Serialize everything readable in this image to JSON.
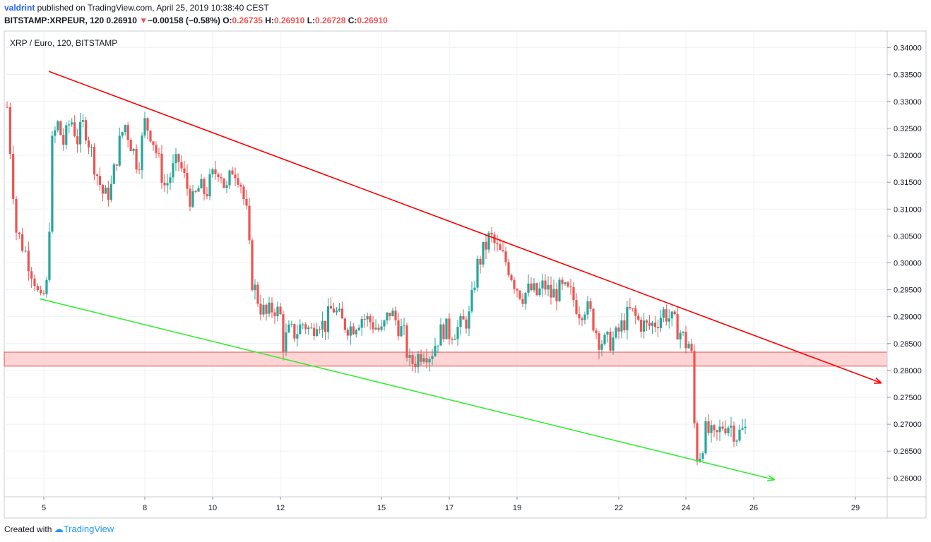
{
  "header": {
    "user": "valdrint",
    "published": " published on TradingView.com, April 25, 2019 10:38:40 CEST",
    "symbol": "BITSTAMP:XRPEUR, 120",
    "last": "0.26910",
    "arrow": "▼",
    "change": "−0.00158 (−0.58%)",
    "o_label": "O:",
    "o_value": "0.26735",
    "h_label": "H:",
    "h_value": "0.26910",
    "l_label": "L:",
    "l_value": "0.26728",
    "c_label": "C:",
    "c_value": "0.26910"
  },
  "footer": {
    "created": "Created with",
    "brand": "TradingView"
  },
  "colors": {
    "up": "#26a69a",
    "down": "#ef5350",
    "resistance": "#ff0000",
    "support": "#33ee33",
    "zone_fill": "#ffcccc",
    "zone_edge": "#e05050",
    "grid": "#eef1f5"
  },
  "chart_data": {
    "type": "candlestick",
    "title": "XRP / Euro, 120, BITSTAMP",
    "xlabel": "",
    "ylabel": "",
    "x_ticks": [
      "5",
      "8",
      "10",
      "12",
      "15",
      "17",
      "19",
      "22",
      "24",
      "26",
      "29"
    ],
    "y_ticks": [
      "0.34000",
      "0.33500",
      "0.33000",
      "0.32500",
      "0.32000",
      "0.31500",
      "0.31000",
      "0.30500",
      "0.30000",
      "0.29500",
      "0.29000",
      "0.28500",
      "0.28000",
      "0.27500",
      "0.27000",
      "0.26500",
      "0.26000"
    ],
    "ylim": [
      0.2565,
      0.3431
    ],
    "grid": true,
    "zone": {
      "low": 0.2808,
      "high": 0.2834
    },
    "resistance_line": {
      "from": {
        "day": 5.15,
        "price": 0.3356
      },
      "to": {
        "day": 29.75,
        "price": 0.2777
      }
    },
    "support_line": {
      "from": {
        "day": 4.9,
        "price": 0.2933
      },
      "to": {
        "day": 26.6,
        "price": 0.2597
      }
    },
    "closes": [
      [
        4.0,
        0.329
      ],
      [
        4.25,
        0.306
      ],
      [
        4.5,
        0.302
      ],
      [
        4.75,
        0.297
      ],
      [
        4.9,
        0.292
      ],
      [
        5.1,
        0.296
      ],
      [
        5.25,
        0.322
      ],
      [
        5.4,
        0.326
      ],
      [
        5.6,
        0.322
      ],
      [
        5.8,
        0.327
      ],
      [
        6.0,
        0.323
      ],
      [
        6.2,
        0.326
      ],
      [
        6.4,
        0.321
      ],
      [
        6.6,
        0.316
      ],
      [
        6.8,
        0.312
      ],
      [
        7.0,
        0.314
      ],
      [
        7.2,
        0.321
      ],
      [
        7.4,
        0.326
      ],
      [
        7.6,
        0.322
      ],
      [
        7.8,
        0.318
      ],
      [
        8.0,
        0.326
      ],
      [
        8.2,
        0.324
      ],
      [
        8.4,
        0.319
      ],
      [
        8.6,
        0.314
      ],
      [
        8.8,
        0.317
      ],
      [
        9.0,
        0.319
      ],
      [
        9.2,
        0.315
      ],
      [
        9.4,
        0.311
      ],
      [
        9.6,
        0.314
      ],
      [
        9.8,
        0.313
      ],
      [
        10.0,
        0.316
      ],
      [
        10.2,
        0.318
      ],
      [
        10.4,
        0.313
      ],
      [
        10.6,
        0.318
      ],
      [
        10.8,
        0.316
      ],
      [
        11.0,
        0.309
      ],
      [
        11.15,
        0.297
      ],
      [
        11.4,
        0.292
      ],
      [
        11.6,
        0.29
      ],
      [
        11.8,
        0.292
      ],
      [
        12.0,
        0.29
      ],
      [
        12.1,
        0.284
      ],
      [
        12.2,
        0.287
      ],
      [
        12.45,
        0.287
      ],
      [
        12.7,
        0.289
      ],
      [
        12.9,
        0.287
      ],
      [
        13.1,
        0.29
      ],
      [
        13.3,
        0.288
      ],
      [
        13.55,
        0.292
      ],
      [
        13.8,
        0.289
      ],
      [
        14.1,
        0.288
      ],
      [
        14.4,
        0.29
      ],
      [
        14.7,
        0.289
      ],
      [
        15.0,
        0.287
      ],
      [
        15.25,
        0.291
      ],
      [
        15.45,
        0.289
      ],
      [
        15.7,
        0.286
      ],
      [
        15.8,
        0.281
      ],
      [
        16.0,
        0.282
      ],
      [
        16.25,
        0.284
      ],
      [
        16.45,
        0.283
      ],
      [
        16.65,
        0.286
      ],
      [
        16.85,
        0.288
      ],
      [
        17.0,
        0.287
      ],
      [
        17.3,
        0.288
      ],
      [
        17.6,
        0.29
      ],
      [
        17.8,
        0.299
      ],
      [
        18.0,
        0.302
      ],
      [
        18.2,
        0.305
      ],
      [
        18.45,
        0.302
      ],
      [
        18.7,
        0.3
      ],
      [
        18.95,
        0.296
      ],
      [
        19.15,
        0.294
      ],
      [
        19.4,
        0.295
      ],
      [
        19.6,
        0.294
      ],
      [
        19.8,
        0.296
      ],
      [
        20.0,
        0.294
      ],
      [
        20.3,
        0.295
      ],
      [
        20.6,
        0.294
      ],
      [
        20.85,
        0.291
      ],
      [
        21.0,
        0.292
      ],
      [
        21.2,
        0.29
      ],
      [
        21.4,
        0.286
      ],
      [
        21.6,
        0.285
      ],
      [
        21.9,
        0.286
      ],
      [
        22.15,
        0.289
      ],
      [
        22.35,
        0.291
      ],
      [
        22.6,
        0.289
      ],
      [
        22.85,
        0.288
      ],
      [
        23.1,
        0.289
      ],
      [
        23.35,
        0.291
      ],
      [
        23.6,
        0.289
      ],
      [
        23.85,
        0.287
      ],
      [
        24.0,
        0.285
      ],
      [
        24.15,
        0.285
      ],
      [
        24.25,
        0.27
      ],
      [
        24.35,
        0.263
      ],
      [
        24.6,
        0.269
      ],
      [
        24.85,
        0.267
      ],
      [
        25.1,
        0.27
      ],
      [
        25.3,
        0.27
      ],
      [
        25.5,
        0.268
      ],
      [
        25.75,
        0.269
      ]
    ]
  }
}
